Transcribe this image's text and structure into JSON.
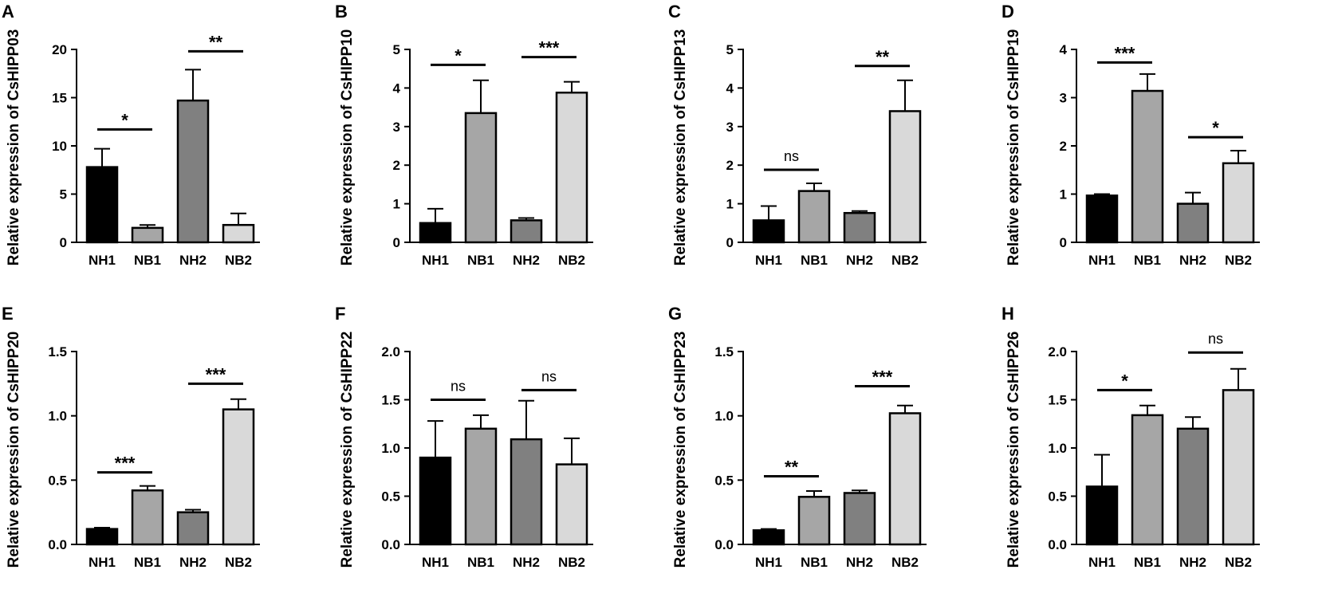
{
  "figure": {
    "style": {
      "colors": {
        "NH1": "#000000",
        "NB1": "#a6a6a6",
        "NH2": "#808080",
        "NB2": "#d9d9d9"
      }
    }
  },
  "chart_data": [
    {
      "panel": "A",
      "type": "bar",
      "title": "",
      "xlabel": "",
      "ylabel": "Relative expression of CsHIPP03",
      "categories": [
        "NH1",
        "NB1",
        "NH2",
        "NB2"
      ],
      "values": [
        7.8,
        1.5,
        14.7,
        1.8
      ],
      "errors": [
        1.9,
        0.3,
        3.2,
        1.2
      ],
      "ylim": [
        0,
        20
      ],
      "yticks": [
        0,
        5,
        10,
        15,
        20
      ],
      "ytick_labels": [
        "0",
        "5",
        "10",
        "15",
        "20"
      ],
      "significance": [
        {
          "between": [
            "NH1",
            "NB1"
          ],
          "label": "*",
          "y": 11.7
        },
        {
          "between": [
            "NH2",
            "NB2"
          ],
          "label": "**",
          "y": 19.8
        }
      ]
    },
    {
      "panel": "B",
      "type": "bar",
      "title": "",
      "xlabel": "",
      "ylabel": "Relative expression of CsHIPP10",
      "categories": [
        "NH1",
        "NB1",
        "NH2",
        "NB2"
      ],
      "values": [
        0.5,
        3.35,
        0.57,
        3.88
      ],
      "errors": [
        0.37,
        0.85,
        0.06,
        0.28
      ],
      "ylim": [
        0,
        5
      ],
      "yticks": [
        0,
        1,
        2,
        3,
        4,
        5
      ],
      "ytick_labels": [
        "0",
        "1",
        "2",
        "3",
        "4",
        "5"
      ],
      "significance": [
        {
          "between": [
            "NH1",
            "NB1"
          ],
          "label": "*",
          "y": 4.6
        },
        {
          "between": [
            "NH2",
            "NB2"
          ],
          "label": "***",
          "y": 4.8
        }
      ]
    },
    {
      "panel": "C",
      "type": "bar",
      "title": "",
      "xlabel": "",
      "ylabel": "Relative expression of CsHIPP13",
      "categories": [
        "NH1",
        "NB1",
        "NH2",
        "NB2"
      ],
      "values": [
        0.57,
        1.33,
        0.76,
        3.4
      ],
      "errors": [
        0.37,
        0.2,
        0.05,
        0.8
      ],
      "ylim": [
        0,
        5
      ],
      "yticks": [
        0,
        1,
        2,
        3,
        4,
        5
      ],
      "ytick_labels": [
        "0",
        "1",
        "2",
        "3",
        "4",
        "5"
      ],
      "significance": [
        {
          "between": [
            "NH1",
            "NB1"
          ],
          "label": "ns",
          "y": 1.88
        },
        {
          "between": [
            "NH2",
            "NB2"
          ],
          "label": "**",
          "y": 4.57
        }
      ]
    },
    {
      "panel": "D",
      "type": "bar",
      "title": "",
      "xlabel": "",
      "ylabel": "Relative expression of CsHIPP19",
      "categories": [
        "NH1",
        "NB1",
        "NH2",
        "NB2"
      ],
      "values": [
        0.97,
        3.14,
        0.8,
        1.64
      ],
      "errors": [
        0.03,
        0.35,
        0.23,
        0.26
      ],
      "ylim": [
        0,
        4
      ],
      "yticks": [
        0,
        1,
        2,
        3,
        4
      ],
      "ytick_labels": [
        "0",
        "1",
        "2",
        "3",
        "4"
      ],
      "significance": [
        {
          "between": [
            "NH1",
            "NB1"
          ],
          "label": "***",
          "y": 3.73
        },
        {
          "between": [
            "NH2",
            "NB2"
          ],
          "label": "*",
          "y": 2.18
        }
      ]
    },
    {
      "panel": "E",
      "type": "bar",
      "title": "",
      "xlabel": "",
      "ylabel": "Relative expression of CsHIPP20",
      "categories": [
        "NH1",
        "NB1",
        "NH2",
        "NB2"
      ],
      "values": [
        0.12,
        0.42,
        0.25,
        1.05
      ],
      "errors": [
        0.01,
        0.035,
        0.02,
        0.08
      ],
      "ylim": [
        0,
        1.5
      ],
      "yticks": [
        0,
        0.5,
        1.0,
        1.5
      ],
      "ytick_labels": [
        "0.0",
        "0.5",
        "1.0",
        "1.5"
      ],
      "significance": [
        {
          "between": [
            "NH1",
            "NB1"
          ],
          "label": "***",
          "y": 0.56
        },
        {
          "between": [
            "NH2",
            "NB2"
          ],
          "label": "***",
          "y": 1.25
        }
      ]
    },
    {
      "panel": "F",
      "type": "bar",
      "title": "",
      "xlabel": "",
      "ylabel": "Relative expression of CsHIPP22",
      "categories": [
        "NH1",
        "NB1",
        "NH2",
        "NB2"
      ],
      "values": [
        0.9,
        1.2,
        1.09,
        0.83
      ],
      "errors": [
        0.38,
        0.14,
        0.4,
        0.27
      ],
      "ylim": [
        0,
        2.0
      ],
      "yticks": [
        0,
        0.5,
        1.0,
        1.5,
        2.0
      ],
      "ytick_labels": [
        "0.0",
        "0.5",
        "1.0",
        "1.5",
        "2.0"
      ],
      "significance": [
        {
          "between": [
            "NH1",
            "NB1"
          ],
          "label": "ns",
          "y": 1.5
        },
        {
          "between": [
            "NH2",
            "NB2"
          ],
          "label": "ns",
          "y": 1.6
        }
      ]
    },
    {
      "panel": "G",
      "type": "bar",
      "title": "",
      "xlabel": "",
      "ylabel": "Relative expression of CsHIPP23",
      "categories": [
        "NH1",
        "NB1",
        "NH2",
        "NB2"
      ],
      "values": [
        0.11,
        0.37,
        0.4,
        1.02
      ],
      "errors": [
        0.01,
        0.045,
        0.02,
        0.06
      ],
      "ylim": [
        0,
        1.5
      ],
      "yticks": [
        0,
        0.5,
        1.0,
        1.5
      ],
      "ytick_labels": [
        "0.0",
        "0.5",
        "1.0",
        "1.5"
      ],
      "significance": [
        {
          "between": [
            "NH1",
            "NB1"
          ],
          "label": "**",
          "y": 0.53
        },
        {
          "between": [
            "NH2",
            "NB2"
          ],
          "label": "***",
          "y": 1.23
        }
      ]
    },
    {
      "panel": "H",
      "type": "bar",
      "title": "",
      "xlabel": "",
      "ylabel": "Relative expression of CsHIPP26",
      "categories": [
        "NH1",
        "NB1",
        "NH2",
        "NB2"
      ],
      "values": [
        0.6,
        1.34,
        1.2,
        1.6
      ],
      "errors": [
        0.33,
        0.1,
        0.12,
        0.22
      ],
      "ylim": [
        0,
        2.0
      ],
      "yticks": [
        0,
        0.5,
        1.0,
        1.5,
        2.0
      ],
      "ytick_labels": [
        "0.0",
        "0.5",
        "1.0",
        "1.5",
        "2.0"
      ],
      "significance": [
        {
          "between": [
            "NH1",
            "NB1"
          ],
          "label": "*",
          "y": 1.6
        },
        {
          "between": [
            "NH2",
            "NB2"
          ],
          "label": "ns",
          "y": 1.99
        }
      ]
    }
  ]
}
